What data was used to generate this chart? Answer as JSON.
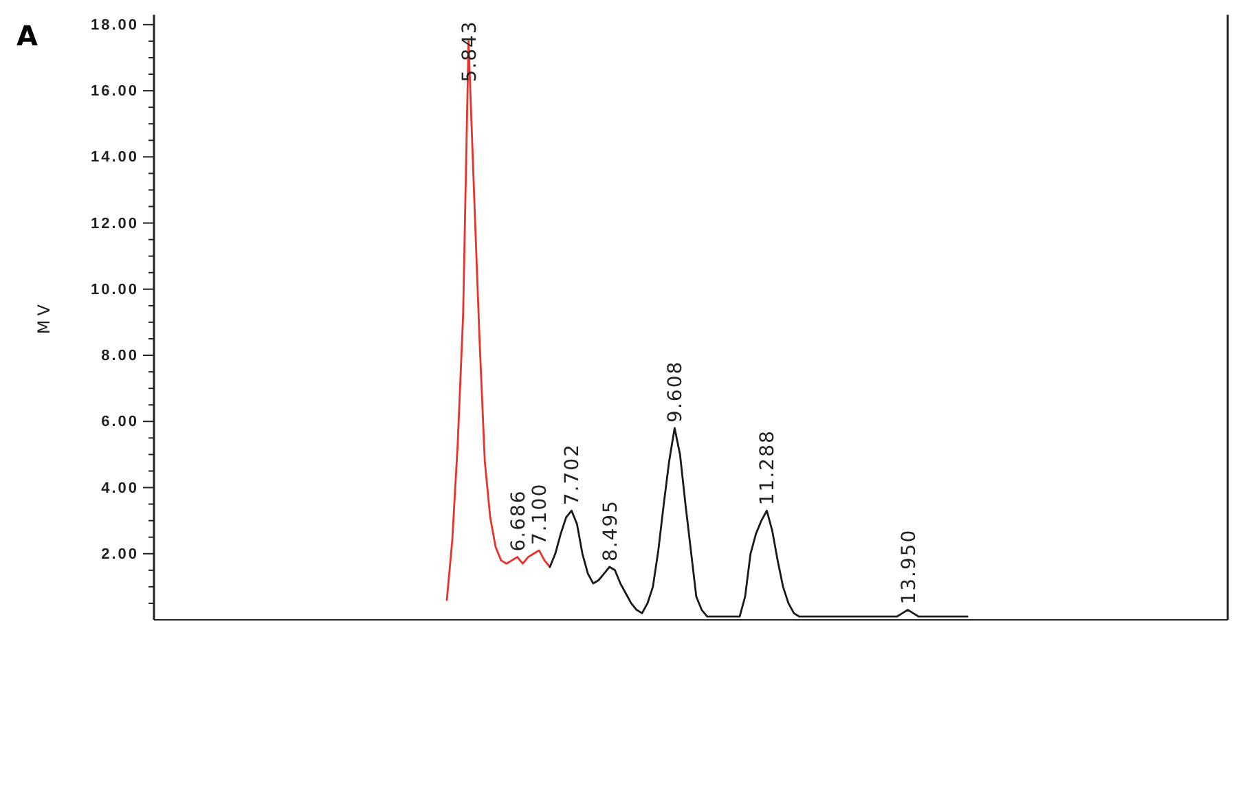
{
  "chart_data": {
    "type": "line",
    "ylabel": "MV",
    "ylim": [
      0,
      18.3
    ],
    "tick_labels": "y",
    "marker": "none",
    "line_style": "solid",
    "categories": [
      null,
      null,
      null,
      null,
      null,
      null,
      null,
      null,
      null,
      null,
      null,
      null,
      null,
      null,
      null,
      null,
      null,
      null,
      null,
      null,
      null,
      null,
      null,
      null,
      null,
      null,
      null,
      null,
      null,
      null,
      null,
      null,
      null,
      null,
      null,
      null,
      null,
      null,
      null,
      null,
      null,
      null,
      null,
      null,
      null,
      null,
      null,
      null,
      null,
      null,
      null,
      null,
      null,
      null,
      null,
      null,
      null,
      null,
      null,
      null,
      null,
      null,
      null,
      null,
      null,
      null,
      null,
      null,
      null,
      null,
      null,
      null,
      null,
      null,
      null,
      null,
      null,
      null,
      null,
      null,
      null,
      null,
      null,
      null,
      null,
      null,
      null,
      null,
      null,
      null,
      null,
      null,
      null,
      null,
      null,
      null,
      null,
      null,
      null,
      null,
      null,
      null,
      null,
      null,
      null,
      null,
      null,
      null,
      null,
      null,
      null,
      null,
      null,
      null,
      null,
      null,
      null,
      null,
      null,
      null,
      null,
      null,
      null,
      null,
      null,
      null,
      null,
      null,
      null,
      null,
      null,
      null,
      null,
      null,
      null,
      null,
      null,
      null,
      null,
      null,
      null,
      null,
      null,
      null,
      null,
      null,
      null,
      null,
      null,
      null,
      null,
      null,
      null,
      null,
      null,
      null,
      null,
      null,
      null,
      null,
      null,
      null,
      null,
      null,
      null,
      null,
      null,
      null,
      null,
      null,
      null,
      null,
      null,
      null,
      null,
      null,
      null,
      null,
      null,
      null,
      null,
      null,
      null,
      null,
      null,
      null,
      null,
      null,
      null,
      null,
      null,
      null,
      null,
      null,
      null,
      null,
      null,
      null,
      null
    ],
    "yticks": [
      {
        "value": 0.5,
        "label": null
      },
      {
        "value": 1,
        "label": null
      },
      {
        "value": 1.5,
        "label": null
      },
      {
        "value": 2,
        "label": "2.00"
      },
      {
        "value": 2.5,
        "label": null
      },
      {
        "value": 3,
        "label": null
      },
      {
        "value": 3.5,
        "label": null
      },
      {
        "value": 4,
        "label": "4.00"
      },
      {
        "value": 4.5,
        "label": null
      },
      {
        "value": 5,
        "label": null
      },
      {
        "value": 5.5,
        "label": null
      },
      {
        "value": 6,
        "label": "6.00"
      },
      {
        "value": 6.5,
        "label": null
      },
      {
        "value": 7,
        "label": null
      },
      {
        "value": 7.5,
        "label": null
      },
      {
        "value": 8,
        "label": "8.00"
      },
      {
        "value": 8.5,
        "label": null
      },
      {
        "value": 9,
        "label": null
      },
      {
        "value": 9.5,
        "label": null
      },
      {
        "value": 10,
        "label": "10.00"
      },
      {
        "value": 10.5,
        "label": null
      },
      {
        "value": 11,
        "label": null
      },
      {
        "value": 11.5,
        "label": null
      },
      {
        "value": 12,
        "label": "12.00"
      },
      {
        "value": 12.5,
        "label": null
      },
      {
        "value": 13,
        "label": null
      },
      {
        "value": 13.5,
        "label": null
      },
      {
        "value": 14,
        "label": "14.00"
      },
      {
        "value": 14.5,
        "label": null
      },
      {
        "value": 15,
        "label": null
      },
      {
        "value": 15.5,
        "label": null
      },
      {
        "value": 16,
        "label": "16.00"
      },
      {
        "value": 16.5,
        "label": null
      },
      {
        "value": 17,
        "label": null
      },
      {
        "value": 17.5,
        "label": null
      },
      {
        "value": 18,
        "label": "18.00"
      }
    ],
    "series": [
      {
        "color": "#e8322a",
        "values": [
          null,
          null,
          null,
          null,
          null,
          null,
          null,
          null,
          null,
          null,
          null,
          null,
          null,
          null,
          null,
          null,
          null,
          null,
          null,
          null,
          null,
          null,
          null,
          null,
          null,
          null,
          null,
          null,
          null,
          null,
          null,
          null,
          null,
          null,
          null,
          null,
          null,
          null,
          null,
          null,
          null,
          null,
          null,
          null,
          null,
          null,
          null,
          null,
          null,
          null,
          null,
          null,
          null,
          null,
          0.6,
          2.4,
          5.3,
          9.2,
          17.5,
          13.0,
          8.6,
          4.8,
          3.1,
          2.2,
          1.8,
          1.7,
          1.8,
          1.9,
          1.7,
          1.9,
          2.0,
          2.1,
          1.8,
          1.6,
          null,
          null,
          null,
          null,
          null,
          null,
          null,
          null,
          null,
          null,
          null,
          null,
          null,
          null,
          null,
          null,
          null,
          null,
          null,
          null,
          null,
          null,
          null,
          null,
          null,
          null,
          null,
          null,
          null,
          null,
          null,
          null,
          null,
          null,
          null,
          null,
          null,
          null,
          null,
          null,
          null,
          null,
          null,
          null,
          null,
          null,
          null,
          null,
          null,
          null,
          null,
          null,
          null,
          null,
          null,
          null,
          null,
          null,
          null,
          null,
          null,
          null,
          null,
          null,
          null,
          null,
          null,
          null,
          null,
          null,
          null,
          null,
          null,
          null,
          null,
          null,
          null,
          null,
          null,
          null,
          null,
          null,
          null,
          null,
          null,
          null,
          null,
          null,
          null,
          null,
          null,
          null,
          null,
          null,
          null,
          null,
          null,
          null,
          null,
          null,
          null,
          null,
          null,
          null,
          null,
          null,
          null,
          null,
          null,
          null,
          null,
          null,
          null,
          null,
          null,
          null,
          null,
          null,
          null,
          null,
          null,
          null,
          null,
          null,
          null
        ]
      },
      {
        "color": "#1a1a1a",
        "values": [
          null,
          null,
          null,
          null,
          null,
          null,
          null,
          null,
          null,
          null,
          null,
          null,
          null,
          null,
          null,
          null,
          null,
          null,
          null,
          null,
          null,
          null,
          null,
          null,
          null,
          null,
          null,
          null,
          null,
          null,
          null,
          null,
          null,
          null,
          null,
          null,
          null,
          null,
          null,
          null,
          null,
          null,
          null,
          null,
          null,
          null,
          null,
          null,
          null,
          null,
          null,
          null,
          null,
          null,
          null,
          null,
          null,
          null,
          null,
          null,
          null,
          null,
          null,
          null,
          null,
          null,
          null,
          null,
          null,
          null,
          null,
          null,
          null,
          1.6,
          2.0,
          2.6,
          3.1,
          3.3,
          2.9,
          2.0,
          1.4,
          1.1,
          1.2,
          1.4,
          1.6,
          1.5,
          1.1,
          0.8,
          0.5,
          0.3,
          0.2,
          0.5,
          1.0,
          2.1,
          3.5,
          4.8,
          5.8,
          5.0,
          3.5,
          2.1,
          0.7,
          0.3,
          0.1,
          0.1,
          0.1,
          0.1,
          0.1,
          0.1,
          0.1,
          0.7,
          2.0,
          2.6,
          3.0,
          3.3,
          2.7,
          1.8,
          1.0,
          0.5,
          0.2,
          0.1,
          0.1,
          0.1,
          0.1,
          0.1,
          0.1,
          0.1,
          0.1,
          0.1,
          0.1,
          0.1,
          0.1,
          0.1,
          0.1,
          0.1,
          0.1,
          0.1,
          0.1,
          0.1,
          0.2,
          0.3,
          0.2,
          0.1,
          0.1,
          0.1,
          0.1,
          0.1,
          0.1,
          0.1,
          0.1,
          0.1,
          0.1,
          null,
          null,
          null,
          null,
          null,
          null,
          null,
          null,
          null,
          null,
          null,
          null,
          null,
          null,
          null,
          null,
          null,
          null,
          null,
          null,
          null,
          null,
          null,
          null,
          null,
          null,
          null,
          null,
          null,
          null,
          null,
          null,
          null,
          null,
          null,
          null,
          null,
          null,
          null,
          null,
          null,
          null,
          null,
          null,
          null,
          null,
          null,
          null
        ]
      }
    ],
    "annotations": [
      "A",
      {
        "text": "5.843",
        "y": 17.5
      },
      {
        "text": "6.686",
        "y": 1.9
      },
      {
        "text": "7.100",
        "y": 2.1
      },
      {
        "text": "7.702",
        "y": 3.3
      },
      {
        "text": "8.495",
        "y": 1.6
      },
      {
        "text": "9.608",
        "y": 5.8
      },
      {
        "text": "11.288",
        "y": 3.3
      },
      {
        "text": "13.950",
        "y": 0.3
      }
    ]
  }
}
